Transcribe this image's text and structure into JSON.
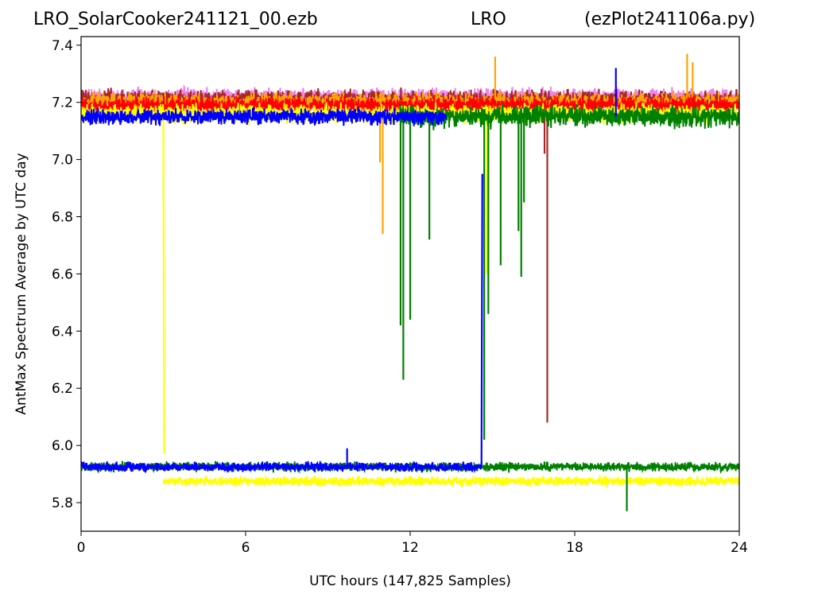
{
  "titles": {
    "left": "LRO_SolarCooker241121_00.ezb",
    "center": "LRO",
    "right": "(ezPlot241106a.py)"
  },
  "chart_data": {
    "type": "line",
    "xlabel": "UTC hours  (147,825 Samples)",
    "ylabel": "AntMax Spectrum Average by UTC day",
    "xlim": [
      0,
      24
    ],
    "ylim": [
      5.7,
      7.43
    ],
    "xticks": [
      0,
      6,
      12,
      18,
      24
    ],
    "yticks": [
      5.8,
      6.0,
      6.2,
      6.4,
      6.6,
      6.8,
      7.0,
      7.2,
      7.4
    ],
    "xtick_labels": [
      "0",
      "6",
      "12",
      "18",
      "24"
    ],
    "ytick_labels": [
      "5.8",
      "6.0",
      "6.2",
      "6.4",
      "6.6",
      "6.8",
      "7.0",
      "7.2",
      "7.4"
    ],
    "grid": false,
    "series": [
      {
        "color": "#ee82ee",
        "upper": {
          "x": [
            0,
            24
          ],
          "y": [
            7.22,
            7.22
          ]
        },
        "spread": 0.04
      },
      {
        "color": "#a52a2a",
        "upper": {
          "x": [
            0,
            24
          ],
          "y": [
            7.21,
            7.21
          ]
        },
        "spread": 0.045,
        "dips": [
          {
            "x": 17.0,
            "y": 6.08
          },
          {
            "x": 16.9,
            "y": 7.02
          }
        ]
      },
      {
        "color": "#ffa500",
        "upper": {
          "x": [
            0,
            24
          ],
          "y": [
            7.2,
            7.2
          ]
        },
        "spread": 0.045,
        "dips": [
          {
            "x": 11.0,
            "y": 6.74
          },
          {
            "x": 10.9,
            "y": 6.99
          }
        ],
        "spikes": [
          {
            "x": 15.1,
            "y": 7.36
          },
          {
            "x": 22.1,
            "y": 7.37
          },
          {
            "x": 22.3,
            "y": 7.34
          }
        ]
      },
      {
        "color": "#ff0000",
        "upper": {
          "x": [
            0,
            24
          ],
          "y": [
            7.19,
            7.19
          ]
        },
        "spread": 0.04
      },
      {
        "color": "#ffff00",
        "upper": {
          "x": [
            0,
            24
          ],
          "y": [
            7.16,
            7.16
          ]
        },
        "spread": 0.045,
        "lower": {
          "x": [
            3.0,
            24
          ],
          "y": [
            5.875,
            5.875
          ]
        },
        "transitions": [
          {
            "x": 3.0,
            "from": 7.16,
            "to": 5.97
          },
          {
            "x": 14.8,
            "from": 6.6,
            "to": 7.1
          }
        ],
        "dips": [
          {
            "x": 14.8,
            "y": 6.6
          }
        ]
      },
      {
        "color": "#008000",
        "upper": {
          "x": [
            11.6,
            24
          ],
          "y": [
            7.15,
            7.15
          ]
        },
        "spread": 0.05,
        "lower": {
          "x": [
            0,
            24
          ],
          "y": [
            5.925,
            5.925
          ]
        },
        "dips": [
          {
            "x": 11.65,
            "y": 6.42
          },
          {
            "x": 11.75,
            "y": 6.23
          },
          {
            "x": 12.0,
            "y": 6.44
          },
          {
            "x": 12.7,
            "y": 6.72
          },
          {
            "x": 14.7,
            "y": 6.02
          },
          {
            "x": 14.85,
            "y": 6.46
          },
          {
            "x": 15.3,
            "y": 6.63
          },
          {
            "x": 15.95,
            "y": 6.75
          },
          {
            "x": 16.05,
            "y": 6.59
          },
          {
            "x": 16.15,
            "y": 6.85
          },
          {
            "x": 19.9,
            "y": 5.77
          }
        ]
      },
      {
        "color": "#0000ff",
        "upper": {
          "x": [
            0,
            13.3
          ],
          "y": [
            7.15,
            7.15
          ]
        },
        "spread": 0.04,
        "lower": {
          "x": [
            0,
            14.6
          ],
          "y": [
            5.925,
            5.925
          ]
        },
        "transitions": [
          {
            "x": 14.6,
            "from": 5.93,
            "to": 6.95
          }
        ],
        "spikes": [
          {
            "x": 19.5,
            "y": 7.32
          },
          {
            "x": 9.7,
            "y": 5.99
          }
        ]
      }
    ]
  }
}
